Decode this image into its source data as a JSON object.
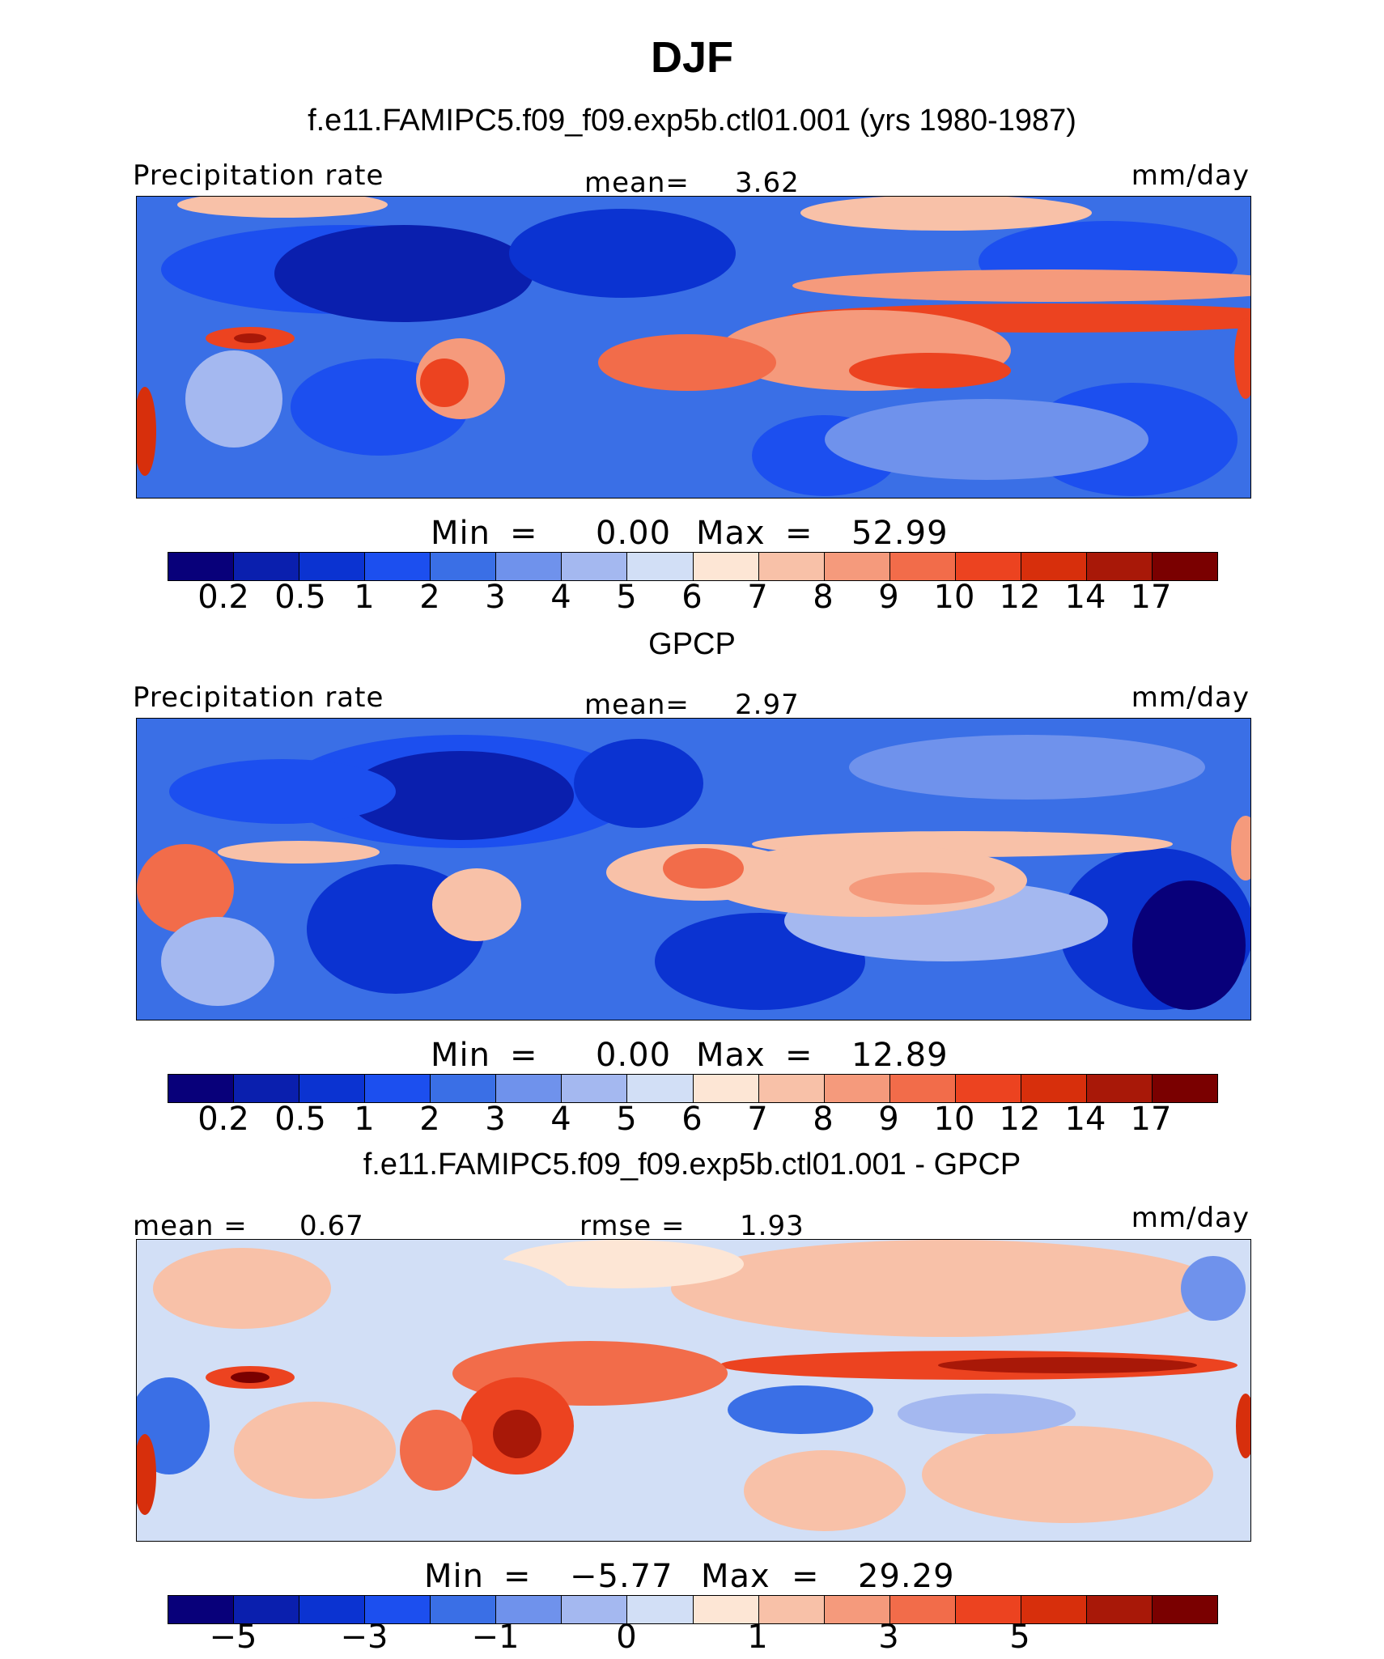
{
  "title": "DJF",
  "colors": {
    "seq": [
      "#08007a",
      "#0a1fae",
      "#0b33d1",
      "#1c4fef",
      "#3a6fe6",
      "#6f92ec",
      "#a4b8f0",
      "#d2dff6",
      "#fde6d5",
      "#f8c1a8",
      "#f59a7c",
      "#f26c4a",
      "#ec4320",
      "#d72f0c",
      "#a81808",
      "#7a0000"
    ],
    "diff": [
      "#08007a",
      "#0a1fae",
      "#0b33d1",
      "#1c4fef",
      "#3a6fe6",
      "#6f92ec",
      "#a4b8f0",
      "#d2dff6",
      "#fde6d5",
      "#f8c1a8",
      "#f59a7c",
      "#f26c4a",
      "#ec4320",
      "#d72f0c",
      "#a81808",
      "#7a0000"
    ]
  },
  "panels": [
    {
      "heading": "f.e11.FAMIPC5.f09_f09.exp5b.ctl01.001 (yrs 1980-1987)",
      "left_label": "Precipitation rate",
      "mid_label": "mean=",
      "mid_value": "3.62",
      "units": "mm/day",
      "min_label": "Min",
      "eq": "=",
      "min_value": "0.00",
      "max_label": "Max",
      "max_value": "52.99",
      "ticks": [
        "0.2",
        "0.5",
        "1",
        "2",
        "3",
        "4",
        "5",
        "6",
        "7",
        "8",
        "9",
        "10",
        "12",
        "14",
        "17"
      ]
    },
    {
      "heading": "GPCP",
      "left_label": "Precipitation rate",
      "mid_label": "mean=",
      "mid_value": "2.97",
      "units": "mm/day",
      "min_label": "Min",
      "eq": "=",
      "min_value": "0.00",
      "max_label": "Max",
      "max_value": "12.89",
      "ticks": [
        "0.2",
        "0.5",
        "1",
        "2",
        "3",
        "4",
        "5",
        "6",
        "7",
        "8",
        "9",
        "10",
        "12",
        "14",
        "17"
      ]
    },
    {
      "heading": "f.e11.FAMIPC5.f09_f09.exp5b.ctl01.001 - GPCP",
      "left_label": "mean =",
      "left_value": "0.67",
      "mid_label": "rmse =",
      "mid_value": "1.93",
      "units": "mm/day",
      "min_label": "Min",
      "eq": "=",
      "min_value": "−5.77",
      "max_label": "Max",
      "max_value": "29.29",
      "ticks": [
        "−5",
        "−3",
        "−1",
        "0",
        "1",
        "3",
        "5"
      ]
    }
  ]
}
